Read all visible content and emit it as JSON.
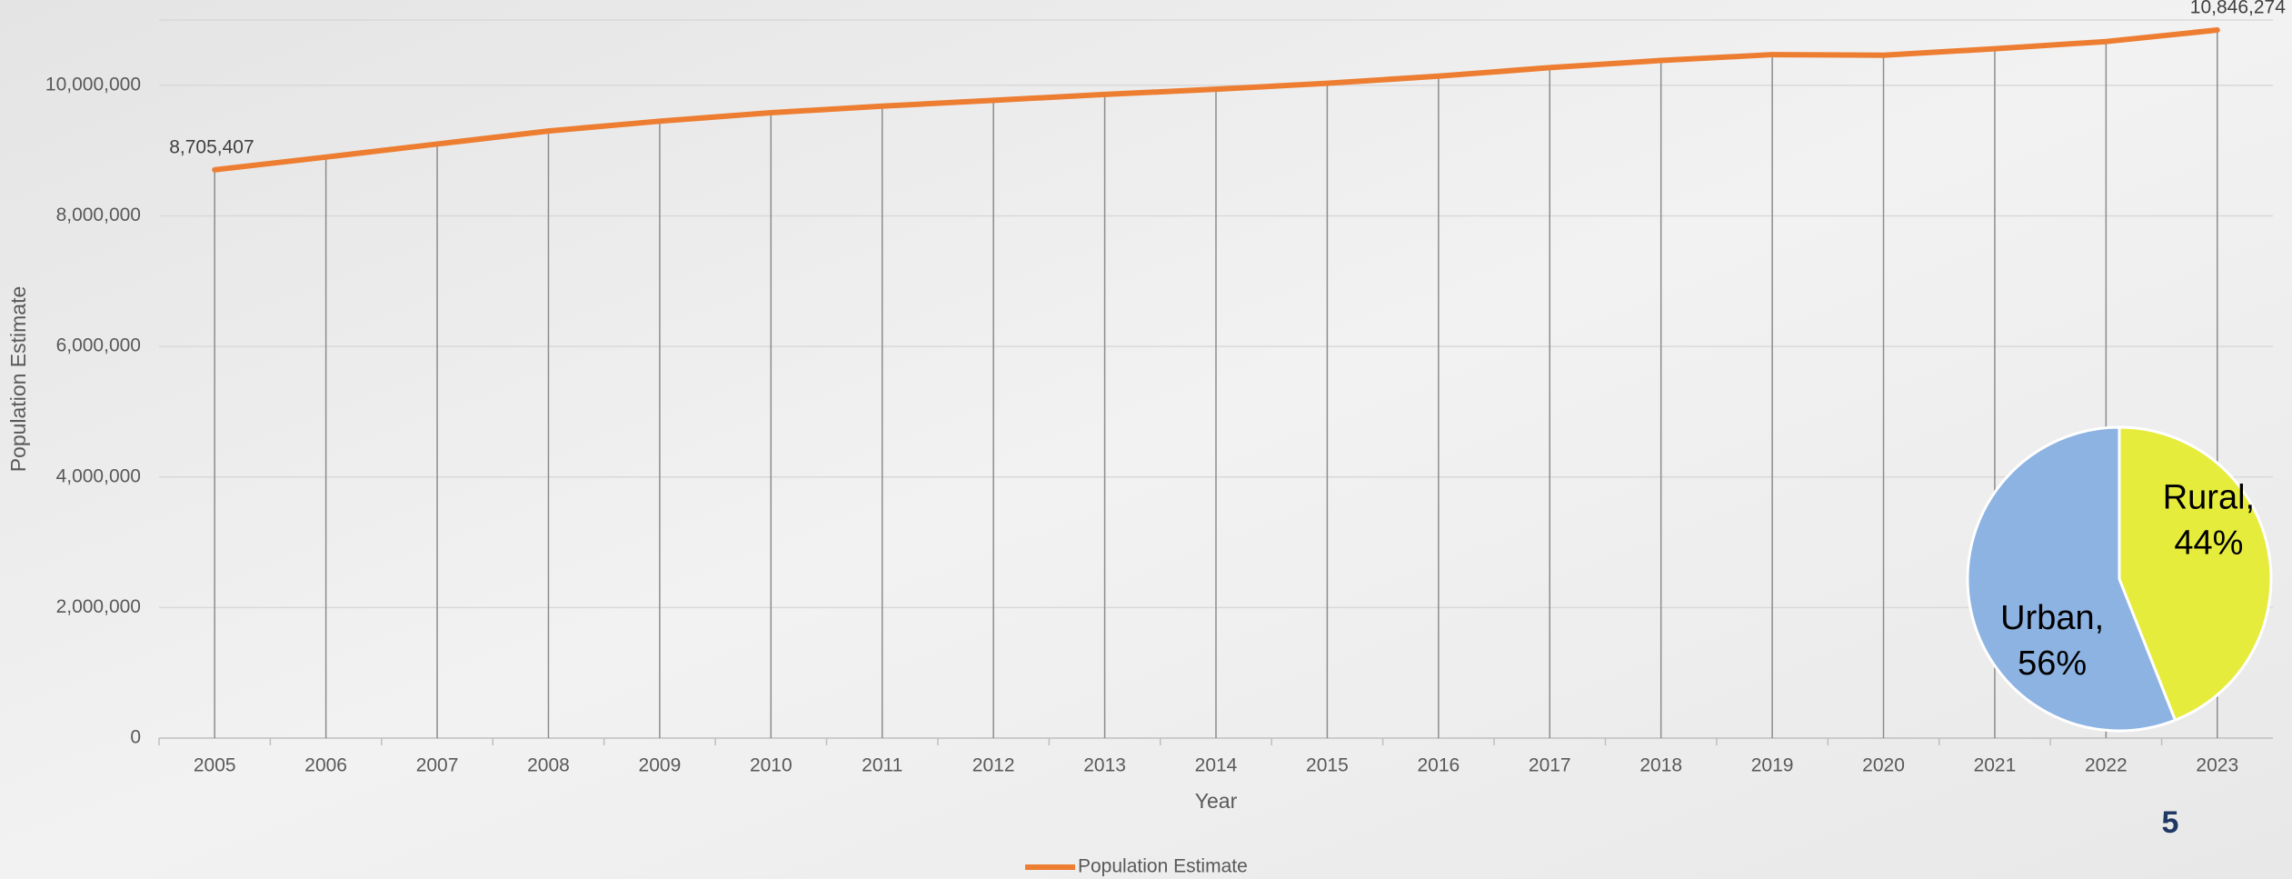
{
  "chart_data": [
    {
      "type": "line",
      "categories": [
        "2005",
        "2006",
        "2007",
        "2008",
        "2009",
        "2010",
        "2011",
        "2012",
        "2013",
        "2014",
        "2015",
        "2016",
        "2017",
        "2018",
        "2019",
        "2020",
        "2021",
        "2022",
        "2023"
      ],
      "series": [
        {
          "name": "Population Estimate",
          "color": "#ed7d31",
          "values": [
            8705407,
            8900000,
            9100000,
            9300000,
            9450000,
            9580000,
            9680000,
            9770000,
            9860000,
            9940000,
            10030000,
            10140000,
            10270000,
            10380000,
            10470000,
            10460000,
            10560000,
            10670000,
            10846274
          ],
          "value_labels": [
            "8,705,407",
            null,
            null,
            null,
            null,
            null,
            null,
            null,
            null,
            null,
            null,
            null,
            null,
            null,
            null,
            null,
            null,
            null,
            "10,846,274"
          ]
        }
      ],
      "xlabel": "Year",
      "ylabel": "Population Estimate",
      "ylim": [
        0,
        11000000
      ],
      "yticks": [
        0,
        {
          "value": 2000000,
          "label": "2,000,000"
        },
        {
          "value": 4000000,
          "label": "4,000,000"
        },
        {
          "value": 6000000,
          "label": "6,000,000"
        },
        {
          "value": 8000000,
          "label": "8,000,000"
        },
        {
          "value": 10000000,
          "label": "10,000,000"
        }
      ],
      "grid": true,
      "drop_lines": true,
      "legend": "bottom"
    },
    {
      "type": "pie",
      "categories": [
        "Rural,",
        "Urban,"
      ],
      "values": [
        44,
        56
      ],
      "value_labels": [
        "44%",
        "56%"
      ],
      "colors": [
        "#e6ec3c",
        "#8db3e2"
      ]
    }
  ],
  "page_number": "5"
}
